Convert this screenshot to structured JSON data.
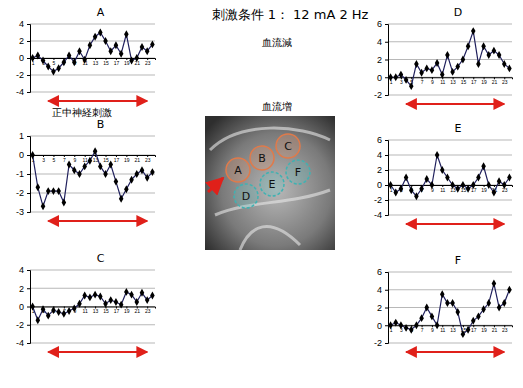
{
  "title": "刺激条件 1： 12 mA 2 Hz",
  "annotations": [
    "血流減",
    "血流増",
    "正中神経刺激"
  ],
  "image": {
    "labels": [
      "A",
      "B",
      "C",
      "D",
      "E",
      "F"
    ]
  },
  "chart_data": [
    {
      "type": "line",
      "title": "A",
      "x": [
        1,
        2,
        3,
        4,
        5,
        6,
        7,
        8,
        9,
        10,
        11,
        12,
        13,
        14,
        15,
        16,
        17,
        18,
        19,
        20,
        21,
        22,
        23,
        24
      ],
      "values": [
        0,
        0.3,
        -0.3,
        -1,
        -1.6,
        -1.2,
        -0.5,
        0.3,
        -0.5,
        0.8,
        -0.2,
        1.5,
        2.5,
        3,
        2,
        0.8,
        1.5,
        0.5,
        2.8,
        -0.3,
        0,
        1.3,
        0.8,
        1.6
      ],
      "color": "#1f1f5c",
      "marker": "diamond",
      "xlim": [
        0.5,
        24.5
      ],
      "xticks": [
        1,
        3,
        5,
        7,
        9,
        11,
        13,
        15,
        17,
        19,
        21,
        23
      ],
      "ylim": [
        -4,
        4
      ],
      "yticks": [
        -4,
        -2,
        0,
        2,
        4
      ],
      "grid": true,
      "stimulus": [
        4,
        23
      ]
    },
    {
      "type": "line",
      "title": "B",
      "x": [
        1,
        2,
        3,
        4,
        5,
        6,
        7,
        8,
        9,
        10,
        11,
        12,
        13,
        14,
        15,
        16,
        17,
        18,
        19,
        20,
        21,
        22,
        23,
        24
      ],
      "values": [
        0,
        -1.7,
        -2.7,
        -1.9,
        -1.9,
        -1.9,
        -2.5,
        -0.5,
        -0.8,
        -1,
        -0.6,
        -0.3,
        0.2,
        -0.6,
        -1,
        -0.5,
        -1.4,
        -2.3,
        -1.8,
        -1.3,
        -1,
        -0.8,
        -1.2,
        -0.9
      ],
      "color": "#1f1f5c",
      "marker": "diamond",
      "xlim": [
        0.5,
        24.5
      ],
      "xticks": [
        1,
        3,
        5,
        7,
        9,
        11,
        13,
        15,
        17,
        19,
        21,
        23
      ],
      "ylim": [
        -3,
        1
      ],
      "yticks": [
        -3,
        -2,
        -1,
        0,
        1
      ],
      "grid": true,
      "stimulus": [
        4,
        23
      ]
    },
    {
      "type": "line",
      "title": "C",
      "x": [
        1,
        2,
        3,
        4,
        5,
        6,
        7,
        8,
        9,
        10,
        11,
        12,
        13,
        14,
        15,
        16,
        17,
        18,
        19,
        20,
        21,
        22,
        23,
        24
      ],
      "values": [
        0,
        -1.5,
        -0.3,
        -1,
        -0.4,
        -0.6,
        -0.8,
        -0.5,
        -0.2,
        0.3,
        1.2,
        1,
        1.3,
        1.1,
        0.3,
        0.7,
        0.5,
        0.2,
        1.6,
        1.3,
        0.5,
        1.5,
        0.7,
        1.2
      ],
      "color": "#1f1f5c",
      "marker": "diamond",
      "xlim": [
        0.5,
        24.5
      ],
      "xticks": [
        1,
        3,
        5,
        7,
        9,
        11,
        13,
        15,
        17,
        19,
        21,
        23
      ],
      "ylim": [
        -4,
        4
      ],
      "yticks": [
        -4,
        -2,
        0,
        2,
        4
      ],
      "grid": true,
      "stimulus": [
        4,
        23
      ]
    },
    {
      "type": "line",
      "title": "D",
      "x": [
        1,
        2,
        3,
        4,
        5,
        6,
        7,
        8,
        9,
        10,
        11,
        12,
        13,
        14,
        15,
        16,
        17,
        18,
        19,
        20,
        21,
        22,
        23,
        24
      ],
      "values": [
        0,
        0,
        0.3,
        -0.3,
        -1,
        1.5,
        0.5,
        1,
        0.8,
        1.6,
        0.3,
        2.5,
        0.6,
        1.2,
        2,
        3.5,
        5.2,
        1.5,
        3.5,
        2.5,
        3,
        2.5,
        1.5,
        1
      ],
      "color": "#1f1f5c",
      "marker": "diamond",
      "xlim": [
        0.5,
        24.5
      ],
      "xticks": [
        1,
        3,
        5,
        7,
        9,
        11,
        13,
        15,
        17,
        19,
        21,
        23
      ],
      "ylim": [
        -2,
        6
      ],
      "yticks": [
        -2,
        0,
        2,
        4,
        6
      ],
      "grid": true,
      "stimulus": [
        4,
        23
      ]
    },
    {
      "type": "line",
      "title": "E",
      "x": [
        1,
        2,
        3,
        4,
        5,
        6,
        7,
        8,
        9,
        10,
        11,
        12,
        13,
        14,
        15,
        16,
        17,
        18,
        19,
        20,
        21,
        22,
        23,
        24
      ],
      "values": [
        0,
        -1,
        -0.5,
        1,
        -0.7,
        -1.5,
        -0.5,
        0.8,
        0,
        4,
        2,
        1,
        0,
        -0.5,
        0,
        -0.5,
        0,
        1,
        2.5,
        0,
        -1,
        0.5,
        0,
        1
      ],
      "color": "#1f1f5c",
      "marker": "diamond",
      "xlim": [
        0.5,
        24.5
      ],
      "xticks": [
        1,
        3,
        5,
        7,
        9,
        11,
        13,
        15,
        17,
        19,
        21,
        23
      ],
      "ylim": [
        -4,
        6
      ],
      "yticks": [
        -4,
        -2,
        0,
        2,
        4,
        6
      ],
      "grid": true,
      "stimulus": [
        4,
        23
      ]
    },
    {
      "type": "line",
      "title": "F",
      "x": [
        1,
        2,
        3,
        4,
        5,
        6,
        7,
        8,
        9,
        10,
        11,
        12,
        13,
        14,
        15,
        16,
        17,
        18,
        19,
        20,
        21,
        22,
        23,
        24
      ],
      "values": [
        0,
        0.3,
        0,
        -0.3,
        -0.5,
        0,
        0.8,
        2,
        1,
        0,
        3.5,
        2.5,
        2.5,
        1.5,
        -1,
        -0.5,
        0.5,
        1,
        1.8,
        2.5,
        4.7,
        2,
        2.5,
        4
      ],
      "color": "#1f1f5c",
      "marker": "diamond",
      "xlim": [
        0.5,
        24.5
      ],
      "xticks": [
        1,
        3,
        5,
        7,
        9,
        11,
        13,
        15,
        17,
        19,
        21,
        23
      ],
      "ylim": [
        -2,
        6
      ],
      "yticks": [
        -2,
        0,
        2,
        4,
        6
      ],
      "grid": true,
      "stimulus": [
        4,
        23
      ]
    }
  ]
}
